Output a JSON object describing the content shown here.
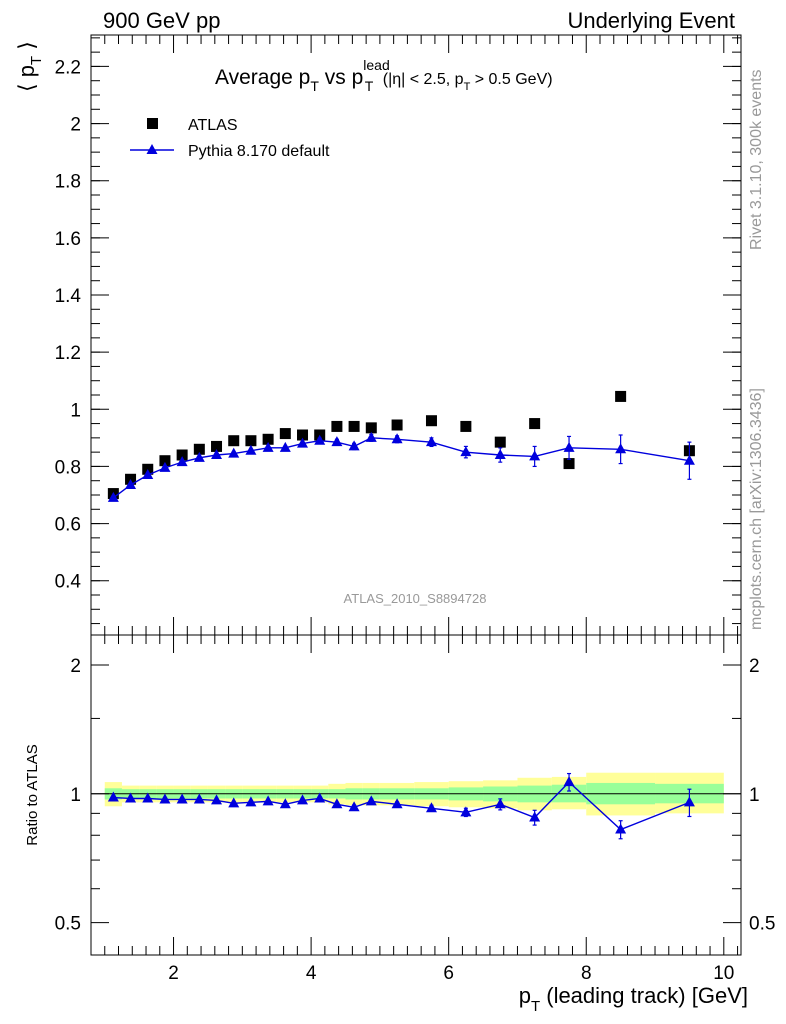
{
  "header": {
    "left": "900 GeV pp",
    "right": "Underlying Event"
  },
  "side_labels": {
    "rivet": "Rivet 3.1.10,  300k events",
    "mcplots": "mcplots.cern.ch [arXiv:1306.3436]"
  },
  "watermark": "ATLAS_2010_S8894728",
  "colors": {
    "data": "#000000",
    "mc": "#0000dd",
    "band_inner": "#99ff99",
    "band_outer": "#ffff99",
    "unity_line": "#000000"
  },
  "chart_data": [
    {
      "type": "scatter",
      "title": "Average pT vs pTlead (|η| < 2.5, pT > 0.5 GeV)",
      "title_parts": {
        "pre": "Average p",
        "sub1": "T",
        "mid": " vs p",
        "sup": "lead",
        "sub2": "T",
        "cut_pre": " (|η| < 2.5, p",
        "cut_sub": "T",
        "cut_post": " > 0.5 GeV)"
      },
      "ylabel": "⟨ pT ⟩",
      "ylabel_parts": {
        "pre": "⟨ p",
        "sub": "T",
        "post": " ⟩"
      },
      "xlim": [
        0.8,
        10.25
      ],
      "ylim": [
        0.21,
        2.31
      ],
      "yticks": [
        0.4,
        0.6,
        0.8,
        1,
        1.2,
        1.4,
        1.6,
        1.8,
        2,
        2.2
      ],
      "ytick_labels": [
        "0.4",
        "0.6",
        "0.8",
        "1",
        "1.2",
        "1.4",
        "1.6",
        "1.8",
        "2",
        "2.2"
      ],
      "legend_position": "top-left",
      "series": [
        {
          "name": "ATLAS",
          "marker": "square",
          "x": [
            1.125,
            1.375,
            1.625,
            1.875,
            2.125,
            2.375,
            2.625,
            2.875,
            3.125,
            3.375,
            3.625,
            3.875,
            4.125,
            4.375,
            4.625,
            4.875,
            5.25,
            5.75,
            6.25,
            6.75,
            7.25,
            7.75,
            8.5,
            9.5
          ],
          "y": [
            0.705,
            0.755,
            0.79,
            0.82,
            0.84,
            0.86,
            0.87,
            0.89,
            0.89,
            0.895,
            0.915,
            0.91,
            0.91,
            0.94,
            0.94,
            0.935,
            0.945,
            0.96,
            0.94,
            0.885,
            0.95,
            0.81,
            1.045,
            0.855
          ]
        },
        {
          "name": "Pythia 8.170 default",
          "marker": "triangle",
          "x": [
            1.125,
            1.375,
            1.625,
            1.875,
            2.125,
            2.375,
            2.625,
            2.875,
            3.125,
            3.375,
            3.625,
            3.875,
            4.125,
            4.375,
            4.625,
            4.875,
            5.25,
            5.75,
            6.25,
            6.75,
            7.25,
            7.75,
            8.5,
            9.5
          ],
          "y": [
            0.69,
            0.735,
            0.77,
            0.795,
            0.815,
            0.83,
            0.84,
            0.845,
            0.855,
            0.865,
            0.865,
            0.88,
            0.89,
            0.885,
            0.87,
            0.9,
            0.895,
            0.885,
            0.85,
            0.84,
            0.835,
            0.865,
            0.86,
            0.82
          ],
          "yerr": [
            0.005,
            0.005,
            0.005,
            0.005,
            0.005,
            0.005,
            0.005,
            0.005,
            0.006,
            0.006,
            0.007,
            0.008,
            0.009,
            0.01,
            0.011,
            0.012,
            0.012,
            0.015,
            0.02,
            0.025,
            0.035,
            0.04,
            0.05,
            0.065
          ]
        }
      ]
    },
    {
      "type": "scatter",
      "ylabel": "Ratio to ATLAS",
      "xlabel": "pT (leading track) [GeV]",
      "xlabel_parts": {
        "pre": "p",
        "sub": "T",
        "post": " (leading track) [GeV]"
      },
      "xlim": [
        0.8,
        10.25
      ],
      "ylim": [
        0.42,
        2.35
      ],
      "log_y": true,
      "xticks": [
        2,
        4,
        6,
        8,
        10
      ],
      "xtick_labels": [
        "2",
        "4",
        "6",
        "8",
        "10"
      ],
      "yticks": [
        0.5,
        1,
        2
      ],
      "ytick_labels": [
        "0.5",
        "1",
        "2"
      ],
      "band": {
        "x_edges": [
          1.0,
          1.25,
          1.5,
          1.75,
          2.0,
          2.25,
          2.5,
          2.75,
          3.0,
          3.25,
          3.5,
          3.75,
          4.0,
          4.25,
          4.5,
          4.75,
          5.0,
          5.5,
          6.0,
          6.5,
          7.0,
          7.5,
          8.0,
          9.0,
          10.0
        ],
        "inner_lo": [
          0.97,
          0.975,
          0.975,
          0.975,
          0.975,
          0.975,
          0.975,
          0.975,
          0.975,
          0.975,
          0.975,
          0.975,
          0.975,
          0.975,
          0.97,
          0.97,
          0.97,
          0.97,
          0.965,
          0.96,
          0.955,
          0.955,
          0.945,
          0.95
        ],
        "inner_hi": [
          1.03,
          1.025,
          1.025,
          1.025,
          1.025,
          1.025,
          1.025,
          1.025,
          1.025,
          1.025,
          1.025,
          1.025,
          1.025,
          1.025,
          1.03,
          1.03,
          1.03,
          1.03,
          1.035,
          1.04,
          1.045,
          1.05,
          1.06,
          1.055
        ],
        "outer_lo": [
          0.935,
          0.955,
          0.955,
          0.955,
          0.955,
          0.955,
          0.955,
          0.955,
          0.955,
          0.955,
          0.955,
          0.955,
          0.955,
          0.945,
          0.94,
          0.94,
          0.94,
          0.935,
          0.93,
          0.925,
          0.915,
          0.92,
          0.89,
          0.9
        ],
        "outer_hi": [
          1.065,
          1.045,
          1.045,
          1.045,
          1.045,
          1.045,
          1.045,
          1.045,
          1.045,
          1.045,
          1.045,
          1.045,
          1.045,
          1.055,
          1.06,
          1.06,
          1.06,
          1.065,
          1.07,
          1.075,
          1.09,
          1.095,
          1.12,
          1.12
        ]
      },
      "series": [
        {
          "name": "Pythia 8.170 default",
          "marker": "triangle",
          "x": [
            1.125,
            1.375,
            1.625,
            1.875,
            2.125,
            2.375,
            2.625,
            2.875,
            3.125,
            3.375,
            3.625,
            3.875,
            4.125,
            4.375,
            4.625,
            4.875,
            5.25,
            5.75,
            6.25,
            6.75,
            7.25,
            7.75,
            8.5,
            9.5
          ],
          "y": [
            0.98,
            0.975,
            0.975,
            0.97,
            0.97,
            0.97,
            0.965,
            0.95,
            0.955,
            0.96,
            0.945,
            0.965,
            0.975,
            0.945,
            0.93,
            0.96,
            0.945,
            0.925,
            0.905,
            0.945,
            0.88,
            1.065,
            0.825,
            0.955
          ],
          "yerr": [
            0.005,
            0.005,
            0.005,
            0.005,
            0.005,
            0.005,
            0.006,
            0.006,
            0.006,
            0.006,
            0.007,
            0.008,
            0.009,
            0.01,
            0.011,
            0.012,
            0.012,
            0.015,
            0.02,
            0.028,
            0.035,
            0.05,
            0.04,
            0.07
          ]
        }
      ]
    }
  ]
}
